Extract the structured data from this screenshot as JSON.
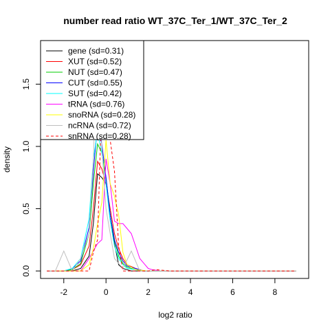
{
  "chart_data": {
    "type": "line",
    "title": "number read ratio WT_37C_Ter_1/WT_37C_Ter_2",
    "xlabel": "log2 ratio",
    "ylabel": "density",
    "xlim": [
      -3.1,
      9.6
    ],
    "ylim": [
      -0.06,
      1.85
    ],
    "x_ticks": [
      -2,
      0,
      2,
      4,
      6,
      8
    ],
    "x_tick_labels": [
      "-2",
      "0",
      "2",
      "4",
      "6",
      "8"
    ],
    "y_ticks": [
      0.0,
      0.5,
      1.0,
      1.5
    ],
    "y_tick_labels": [
      "0.0",
      "0.5",
      "1.0",
      "1.5"
    ],
    "grid": false,
    "legend_position": "top-left",
    "series": [
      {
        "name": "gene (sd=0.31)",
        "color": "#000000",
        "dash": "solid",
        "x": [
          -2.8,
          -1.6,
          -1.2,
          -0.8,
          -0.6,
          -0.4,
          -0.2,
          0.0,
          0.2,
          0.4,
          0.6,
          0.8,
          1.0,
          1.2,
          1.6,
          2.0,
          9.0
        ],
        "y": [
          0.0,
          0.0,
          0.02,
          0.12,
          0.38,
          0.78,
          0.75,
          0.7,
          0.45,
          0.22,
          0.05,
          0.02,
          0.01,
          0.0,
          0.0,
          0.0,
          0.0
        ]
      },
      {
        "name": "XUT (sd=0.52)",
        "color": "#ff0000",
        "dash": "solid",
        "x": [
          -2.8,
          -2.0,
          -1.6,
          -1.2,
          -0.8,
          -0.6,
          -0.4,
          -0.2,
          0.0,
          0.2,
          0.4,
          0.6,
          0.8,
          1.0,
          1.4,
          1.8,
          2.4,
          9.0
        ],
        "y": [
          0.0,
          0.0,
          0.01,
          0.05,
          0.2,
          0.5,
          0.88,
          0.82,
          0.7,
          0.5,
          0.3,
          0.18,
          0.1,
          0.05,
          0.02,
          0.0,
          0.0,
          0.0
        ]
      },
      {
        "name": "NUT (sd=0.47)",
        "color": "#00cc00",
        "dash": "solid",
        "x": [
          -2.8,
          -2.0,
          -1.6,
          -1.2,
          -0.8,
          -0.6,
          -0.4,
          -0.2,
          0.0,
          0.2,
          0.4,
          0.6,
          0.8,
          1.0,
          1.4,
          1.8,
          2.4,
          9.0
        ],
        "y": [
          0.0,
          0.0,
          0.01,
          0.06,
          0.3,
          0.7,
          1.02,
          0.95,
          0.75,
          0.45,
          0.25,
          0.12,
          0.06,
          0.03,
          0.01,
          0.0,
          0.0,
          0.0
        ]
      },
      {
        "name": "CUT (sd=0.55)",
        "color": "#0000ff",
        "dash": "solid",
        "x": [
          -2.8,
          -2.0,
          -1.6,
          -1.2,
          -0.8,
          -0.6,
          -0.4,
          -0.2,
          0.0,
          0.2,
          0.4,
          0.6,
          0.8,
          1.0,
          1.4,
          1.8,
          2.4,
          9.0
        ],
        "y": [
          0.0,
          0.0,
          0.02,
          0.08,
          0.35,
          0.8,
          1.18,
          1.02,
          0.75,
          0.45,
          0.25,
          0.15,
          0.08,
          0.04,
          0.02,
          0.0,
          0.0,
          0.0
        ]
      },
      {
        "name": "SUT (sd=0.42)",
        "color": "#00ffff",
        "dash": "solid",
        "x": [
          -2.8,
          -2.0,
          -1.6,
          -1.2,
          -0.8,
          -0.6,
          -0.4,
          -0.2,
          0.0,
          0.2,
          0.4,
          0.6,
          0.8,
          1.0,
          1.4,
          1.8,
          2.4,
          9.0
        ],
        "y": [
          0.0,
          0.0,
          0.02,
          0.1,
          0.42,
          0.9,
          1.12,
          0.95,
          0.7,
          0.4,
          0.2,
          0.1,
          0.05,
          0.02,
          0.01,
          0.0,
          0.0,
          0.0
        ]
      },
      {
        "name": "tRNA (sd=0.76)",
        "color": "#ff00ff",
        "dash": "solid",
        "x": [
          -2.8,
          -2.0,
          -1.6,
          -1.2,
          -0.8,
          -0.4,
          -0.2,
          0.0,
          0.2,
          0.4,
          0.6,
          0.8,
          1.0,
          1.2,
          1.4,
          1.6,
          1.8,
          2.0,
          2.2,
          2.6,
          3.0,
          9.0
        ],
        "y": [
          0.0,
          0.0,
          0.0,
          0.0,
          0.1,
          0.22,
          0.25,
          0.9,
          0.7,
          0.4,
          0.38,
          0.38,
          0.34,
          0.3,
          0.2,
          0.1,
          0.06,
          0.02,
          0.01,
          0.0,
          0.0,
          0.0
        ]
      },
      {
        "name": "snoRNA (sd=0.28)",
        "color": "#ffff00",
        "dash": "solid",
        "x": [
          -2.8,
          -1.6,
          -1.2,
          -0.8,
          -0.6,
          -0.4,
          -0.2,
          0.0,
          0.2,
          0.4,
          0.6,
          0.8,
          1.0,
          1.4,
          2.0,
          9.0
        ],
        "y": [
          0.0,
          0.0,
          0.0,
          0.05,
          0.18,
          0.38,
          0.55,
          1.05,
          0.7,
          0.6,
          0.45,
          0.15,
          0.05,
          0.01,
          0.0,
          0.0
        ]
      },
      {
        "name": "ncRNA (sd=0.72)",
        "color": "#bebebe",
        "dash": "solid",
        "x": [
          -2.8,
          -2.4,
          -2.0,
          -1.6,
          -1.2,
          -0.8,
          -0.6,
          -0.4,
          -0.2,
          0.0,
          0.2,
          0.4,
          0.8,
          1.2,
          1.6,
          2.0,
          2.4,
          9.0
        ],
        "y": [
          0.0,
          0.0,
          0.16,
          0.0,
          0.1,
          0.3,
          0.9,
          1.85,
          1.0,
          0.5,
          0.3,
          0.1,
          0.02,
          0.16,
          0.0,
          0.0,
          0.0,
          0.0
        ]
      },
      {
        "name": "snRNA (sd=0.28)",
        "color": "#ff0000",
        "dash": "dashed",
        "x": [
          -2.8,
          -1.2,
          -0.8,
          -0.6,
          -0.4,
          -0.2,
          0.0,
          0.2,
          0.4,
          0.6,
          0.8,
          1.2,
          2.0,
          2.4,
          3.0,
          9.0
        ],
        "y": [
          0.0,
          0.0,
          0.0,
          0.15,
          0.25,
          1.4,
          1.1,
          1.05,
          0.8,
          0.2,
          0.0,
          0.0,
          0.0,
          0.01,
          0.0,
          0.0
        ]
      }
    ]
  }
}
